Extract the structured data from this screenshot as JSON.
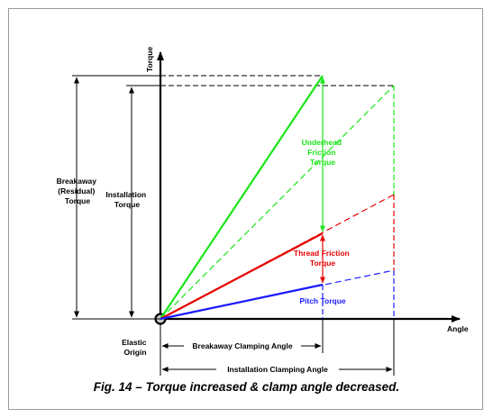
{
  "axes": {
    "y_label": "Torque",
    "x_label": "Angle"
  },
  "labels": {
    "breakaway_torque": [
      "Breakaway",
      "(Residual)",
      "Torque"
    ],
    "installation_torque": [
      "Installation",
      "Torque"
    ],
    "elastic_origin": [
      "Elastic",
      "Origin"
    ],
    "underhead_friction": [
      "Underhead",
      "Friction",
      "Torque"
    ],
    "thread_friction": [
      "Thread Friction",
      "Torque"
    ],
    "pitch_torque": "Pitch Torque",
    "breakaway_clamping_angle": "Breakaway Clamping Angle",
    "installation_clamping_angle": "Installation Clamping Angle"
  },
  "caption": "Fig. 14 – Torque increased & clamp angle decreased.",
  "colors": {
    "underhead": "#19e619",
    "thread": "#e60000",
    "pitch": "#1a1aff",
    "frame": "#9a9a9a"
  }
}
